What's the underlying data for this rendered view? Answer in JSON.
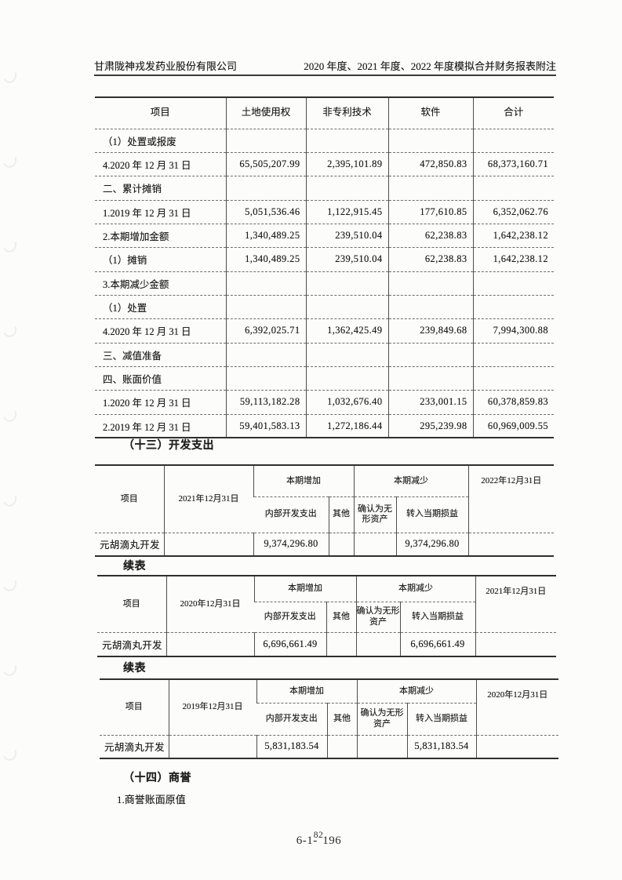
{
  "header": {
    "company": "甘肃陇神戎发药业股份有限公司",
    "title": "2020 年度、2021 年度、2022 年度模拟合并财务报表附注"
  },
  "intangible_table": {
    "columns": [
      "项目",
      "土地使用权",
      "非专利技术",
      "软件",
      "合计"
    ],
    "rows": [
      {
        "label": "（1）处置或报废",
        "values": [
          "",
          "",
          "",
          ""
        ]
      },
      {
        "label": "4.2020 年 12 月 31 日",
        "values": [
          "65,505,207.99",
          "2,395,101.89",
          "472,850.83",
          "68,373,160.71"
        ]
      },
      {
        "label": "二、累计摊销",
        "values": [
          "",
          "",
          "",
          ""
        ]
      },
      {
        "label": "1.2019 年 12 月 31 日",
        "values": [
          "5,051,536.46",
          "1,122,915.45",
          "177,610.85",
          "6,352,062.76"
        ]
      },
      {
        "label": "2.本期增加金额",
        "values": [
          "1,340,489.25",
          "239,510.04",
          "62,238.83",
          "1,642,238.12"
        ]
      },
      {
        "label": "（1）摊销",
        "values": [
          "1,340,489.25",
          "239,510.04",
          "62,238.83",
          "1,642,238.12"
        ]
      },
      {
        "label": "3.本期减少金额",
        "values": [
          "",
          "",
          "",
          ""
        ]
      },
      {
        "label": "（1）处置",
        "values": [
          "",
          "",
          "",
          ""
        ]
      },
      {
        "label": "4.2020 年 12 月 31 日",
        "values": [
          "6,392,025.71",
          "1,362,425.49",
          "239,849.68",
          "7,994,300.88"
        ]
      },
      {
        "label": "三、减值准备",
        "values": [
          "",
          "",
          "",
          ""
        ]
      },
      {
        "label": "四、账面价值",
        "values": [
          "",
          "",
          "",
          ""
        ]
      },
      {
        "label": "1.2020 年 12 月 31 日",
        "values": [
          "59,113,182.28",
          "1,032,676.40",
          "233,001.15",
          "60,378,859.83"
        ]
      },
      {
        "label": "2.2019 年 12 月 31 日",
        "values": [
          "59,401,583.13",
          "1,272,186.44",
          "295,239.98",
          "60,969,009.55"
        ]
      }
    ]
  },
  "dev_section": {
    "heading": "（十三）开发支出",
    "continued_label": "续表",
    "header_labels": {
      "item": "项目",
      "increase": "本期增加",
      "decrease": "本期减少",
      "internal": "内部开发支出",
      "other": "其他",
      "to_intangible": "确认为无形资产",
      "to_pl": "转入当期损益"
    },
    "tables": [
      {
        "begin_col": "2021年12月31日",
        "end_col": "2022年12月31日",
        "row": {
          "item": "元胡滴丸开发",
          "begin": "",
          "internal": "9,374,296.80",
          "other": "",
          "to_intangible": "",
          "to_pl": "9,374,296.80",
          "end": ""
        }
      },
      {
        "begin_col": "2020年12月31日",
        "end_col": "2021年12月31日",
        "row": {
          "item": "元胡滴丸开发",
          "begin": "",
          "internal": "6,696,661.49",
          "other": "",
          "to_intangible": "",
          "to_pl": "6,696,661.49",
          "end": ""
        }
      },
      {
        "begin_col": "2019年12月31日",
        "end_col": "2020年12月31日",
        "row": {
          "item": "元胡滴丸开发",
          "begin": "",
          "internal": "5,831,183.54",
          "other": "",
          "to_intangible": "",
          "to_pl": "5,831,183.54",
          "end": ""
        }
      }
    ]
  },
  "goodwill_section": {
    "heading": "（十四）商誉",
    "item1": "1.商誉账面原值"
  },
  "footer": {
    "prefix": "6-1-",
    "sup": "82",
    "suffix": "196"
  }
}
